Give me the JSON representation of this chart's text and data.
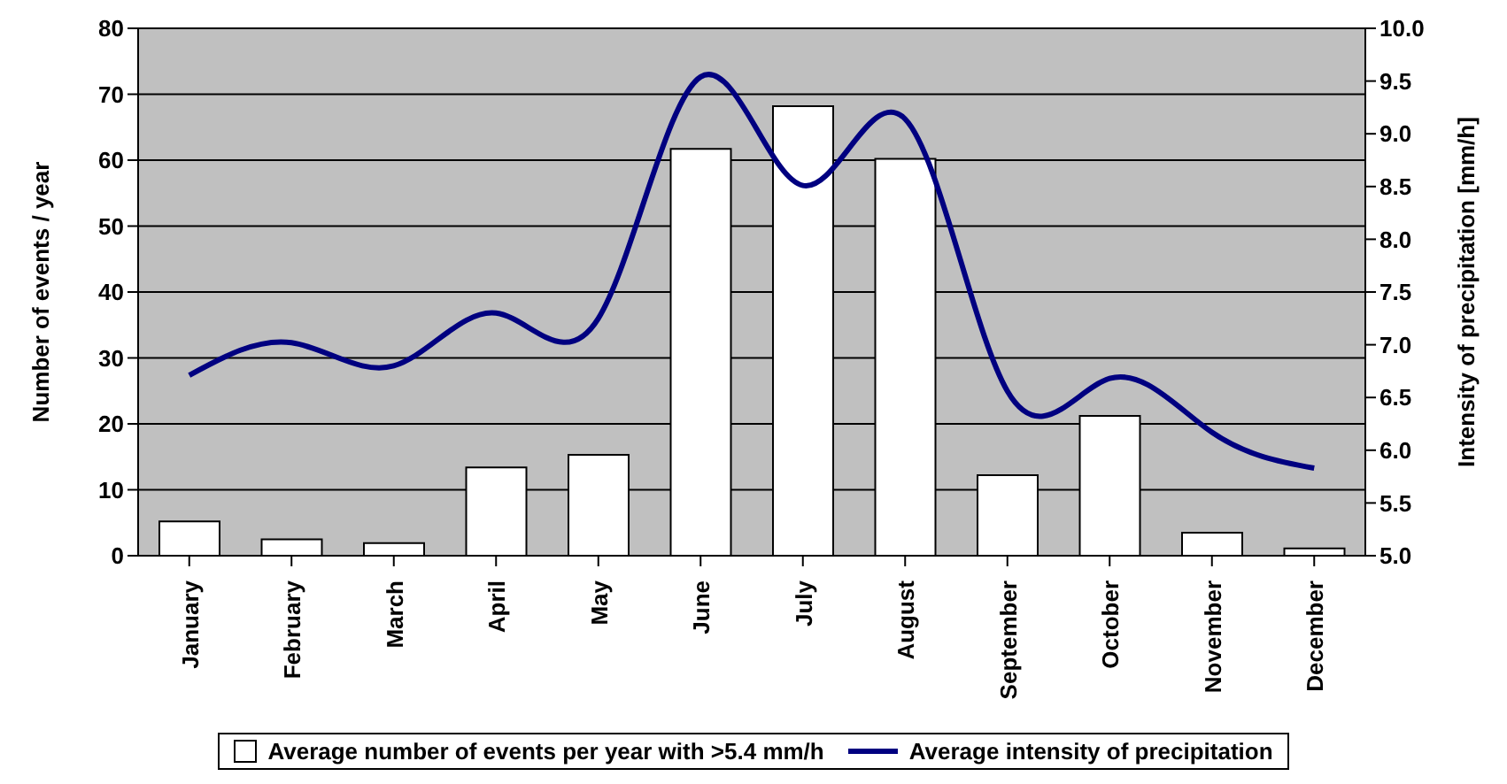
{
  "chart_data": {
    "type": "bar",
    "ylabel": "Number of events / year",
    "y2label": "Intensity of precipitation [mm/h]",
    "categories": [
      "January",
      "February",
      "March",
      "April",
      "May",
      "June",
      "July",
      "August",
      "September",
      "October",
      "November",
      "December"
    ],
    "series": [
      {
        "name": "Average number of events per year with >5.4 mm/h",
        "color": "#ffffff",
        "values": [
          5.2,
          2.5,
          1.9,
          13.4,
          15.3,
          61.7,
          68.2,
          60.2,
          12.2,
          21.2,
          3.5,
          1.1
        ]
      },
      {
        "name": "Average intensity of precipitation",
        "type": "line",
        "axis": "y2",
        "color": "#000080",
        "values": [
          6.71,
          7.02,
          6.8,
          7.3,
          7.25,
          9.54,
          8.51,
          9.14,
          6.56,
          6.68,
          6.17,
          5.83
        ]
      }
    ],
    "ylim": [
      0,
      80
    ],
    "yticks": [
      0,
      10,
      20,
      30,
      40,
      50,
      60,
      70,
      80
    ],
    "y2lim": [
      5.0,
      10.0
    ],
    "y2ticks": [
      {
        "value": 5.0,
        "label": "5.0"
      },
      {
        "value": 5.5,
        "label": "5.5"
      },
      {
        "value": 6.0,
        "label": "6.0"
      },
      {
        "value": 6.5,
        "label": "6.5"
      },
      {
        "value": 7.0,
        "label": "7.0"
      },
      {
        "value": 7.5,
        "label": "7.5"
      },
      {
        "value": 8.0,
        "label": "8.0"
      },
      {
        "value": 8.5,
        "label": "8.5"
      },
      {
        "value": 9.0,
        "label": "9.0"
      },
      {
        "value": 9.5,
        "label": "9.5"
      },
      {
        "value": 10.0,
        "label": "10.0"
      }
    ],
    "grid": "y",
    "legend": "bottom",
    "marker": "none"
  }
}
